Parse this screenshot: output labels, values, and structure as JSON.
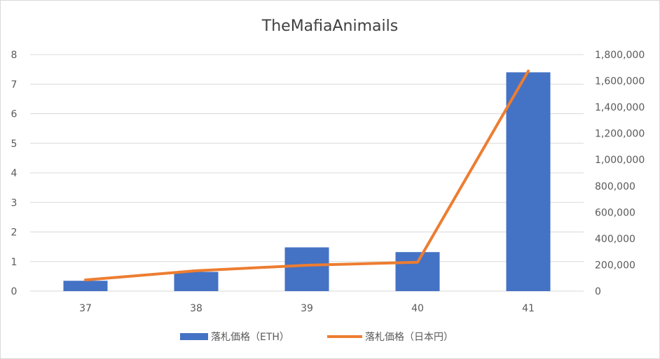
{
  "chart_data": {
    "type": "bar",
    "title": "TheMafiaAnimails",
    "categories": [
      "37",
      "38",
      "39",
      "40",
      "41"
    ],
    "series": [
      {
        "name": "落札価格（ETH）",
        "type": "bar",
        "axis": "left",
        "color": "#4472c4",
        "values": [
          0.35,
          0.65,
          1.48,
          1.32,
          7.4
        ]
      },
      {
        "name": "落札価格（日本円）",
        "type": "line",
        "axis": "right",
        "color": "#ed7d31",
        "values": [
          85000,
          155000,
          197000,
          220000,
          1675000
        ]
      }
    ],
    "y_left": {
      "min": 0,
      "max": 8,
      "ticks": [
        "0",
        "1",
        "2",
        "3",
        "4",
        "5",
        "6",
        "7",
        "8"
      ]
    },
    "y_right": {
      "min": 0,
      "max": 1800000,
      "ticks": [
        "0",
        "200,000",
        "400,000",
        "600,000",
        "800,000",
        "1,000,000",
        "1,200,000",
        "1,400,000",
        "1,600,000",
        "1,800,000"
      ]
    },
    "grid": true,
    "legend_position": "bottom"
  }
}
